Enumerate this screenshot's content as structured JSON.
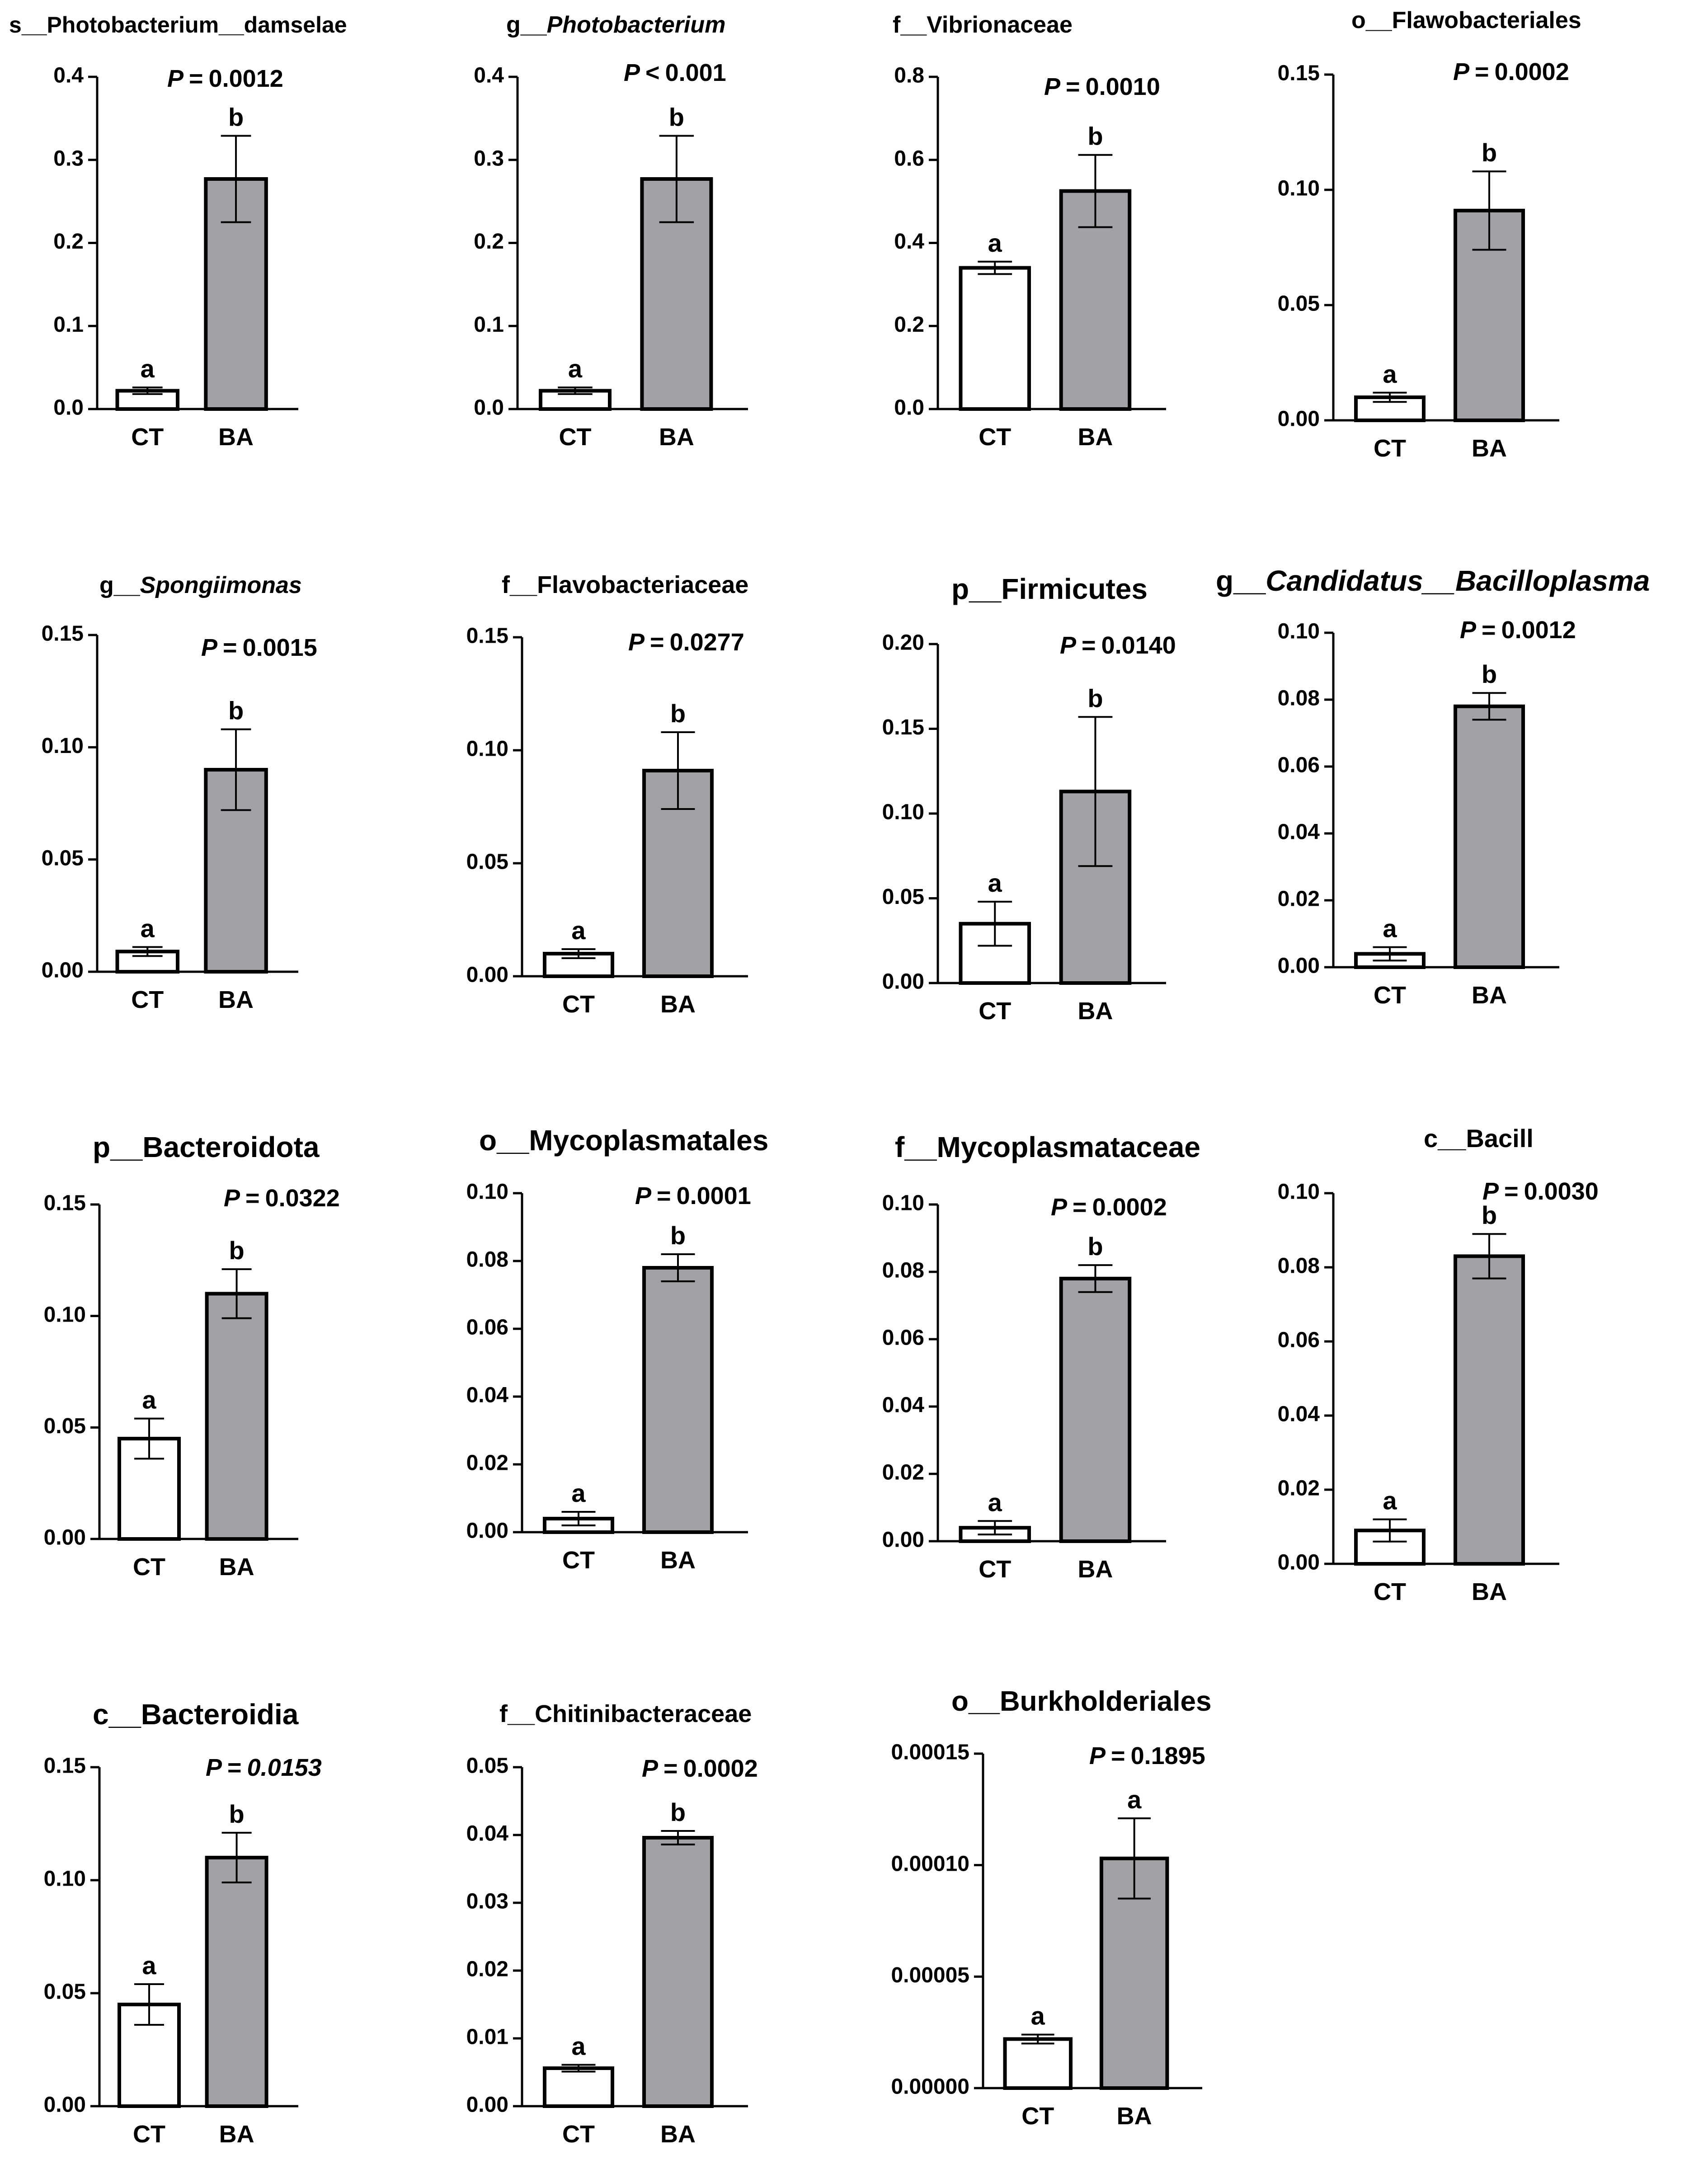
{
  "figure": {
    "panel_count": 15
  },
  "chart_data": [
    {
      "type": "bar",
      "title_prefix": "s",
      "title_sep": "__",
      "title": "Photobacterium__damselae",
      "title_italic": false,
      "p_prefix": "P",
      "p_op": "=",
      "p_value": "0.0012",
      "p_italic": false,
      "categories": [
        "CT",
        "BA"
      ],
      "values": [
        0.022,
        0.277
      ],
      "errors": [
        0.004,
        0.052
      ],
      "letters": [
        "a",
        "b"
      ],
      "ylim": [
        0,
        0.4
      ],
      "yticks": [
        "0.0",
        "0.1",
        "0.2",
        "0.3",
        "0.4"
      ]
    },
    {
      "type": "bar",
      "title_prefix": "g",
      "title_sep": "__",
      "title": "Photobacterium",
      "title_italic": true,
      "p_prefix": "P",
      "p_op": "<",
      "p_value": "0.001",
      "p_italic": false,
      "categories": [
        "CT",
        "BA"
      ],
      "values": [
        0.022,
        0.277
      ],
      "errors": [
        0.004,
        0.052
      ],
      "letters": [
        "a",
        "b"
      ],
      "ylim": [
        0,
        0.4
      ],
      "yticks": [
        "0.0",
        "0.1",
        "0.2",
        "0.3",
        "0.4"
      ]
    },
    {
      "type": "bar",
      "title_prefix": "f",
      "title_sep": "__",
      "title": "Vibrionaceae",
      "title_italic": false,
      "p_prefix": "P",
      "p_op": "=",
      "p_value": "0.0010",
      "p_italic": false,
      "categories": [
        "CT",
        "BA"
      ],
      "values": [
        0.34,
        0.525
      ],
      "errors": [
        0.015,
        0.087
      ],
      "letters": [
        "a",
        "b"
      ],
      "ylim": [
        0,
        0.8
      ],
      "yticks": [
        "0.0",
        "0.2",
        "0.4",
        "0.6",
        "0.8"
      ]
    },
    {
      "type": "bar",
      "title_prefix": "o",
      "title_sep": "__",
      "title": "Flawobacteriales",
      "title_italic": false,
      "p_prefix": "P",
      "p_op": "=",
      "p_value": "0.0002",
      "p_italic": false,
      "categories": [
        "CT",
        "BA"
      ],
      "values": [
        0.01,
        0.091
      ],
      "errors": [
        0.002,
        0.017
      ],
      "letters": [
        "a",
        "b"
      ],
      "ylim": [
        0,
        0.15
      ],
      "yticks": [
        "0.00",
        "0.05",
        "0.10",
        "0.15"
      ]
    },
    {
      "type": "bar",
      "title_prefix": "g",
      "title_sep": "__",
      "title": "Spongiimonas",
      "title_italic": true,
      "p_prefix": "P",
      "p_op": "=",
      "p_value": "0.0015",
      "p_italic": false,
      "categories": [
        "CT",
        "BA"
      ],
      "values": [
        0.009,
        0.09
      ],
      "errors": [
        0.002,
        0.018
      ],
      "letters": [
        "a",
        "b"
      ],
      "ylim": [
        0,
        0.15
      ],
      "yticks": [
        "0.00",
        "0.05",
        "0.10",
        "0.15"
      ]
    },
    {
      "type": "bar",
      "title_prefix": "f",
      "title_sep": "__",
      "title": "Flavobacteriaceae",
      "title_italic": false,
      "p_prefix": "P",
      "p_op": "=",
      "p_value": "0.0277",
      "p_italic": false,
      "categories": [
        "CT",
        "BA"
      ],
      "values": [
        0.01,
        0.091
      ],
      "errors": [
        0.002,
        0.017
      ],
      "letters": [
        "a",
        "b"
      ],
      "ylim": [
        0,
        0.15
      ],
      "yticks": [
        "0.00",
        "0.05",
        "0.10",
        "0.15"
      ]
    },
    {
      "type": "bar",
      "title_prefix": "p",
      "title_sep": "__",
      "title": "Firmicutes",
      "title_italic": false,
      "p_prefix": "P",
      "p_op": "=",
      "p_value": "0.0140",
      "p_italic": false,
      "categories": [
        "CT",
        "BA"
      ],
      "values": [
        0.035,
        0.113
      ],
      "errors": [
        0.013,
        0.044
      ],
      "letters": [
        "a",
        "b"
      ],
      "ylim": [
        0,
        0.2
      ],
      "yticks": [
        "0.00",
        "0.05",
        "0.10",
        "0.15",
        "0.20"
      ]
    },
    {
      "type": "bar",
      "title_prefix": "g",
      "title_sep": "__",
      "title": "Candidatus__Bacilloplasma",
      "title_italic": true,
      "p_prefix": "P",
      "p_op": "=",
      "p_value": "0.0012",
      "p_italic": false,
      "categories": [
        "CT",
        "BA"
      ],
      "values": [
        0.004,
        0.078
      ],
      "errors": [
        0.002,
        0.004
      ],
      "letters": [
        "a",
        "b"
      ],
      "ylim": [
        0,
        0.1
      ],
      "yticks": [
        "0.00",
        "0.02",
        "0.04",
        "0.06",
        "0.08",
        "0.10"
      ]
    },
    {
      "type": "bar",
      "title_prefix": "p",
      "title_sep": "__",
      "title": "Bacteroidota",
      "title_italic": false,
      "p_prefix": "P",
      "p_op": "=",
      "p_value": "0.0322",
      "p_italic": false,
      "categories": [
        "CT",
        "BA"
      ],
      "values": [
        0.045,
        0.11
      ],
      "errors": [
        0.009,
        0.011
      ],
      "letters": [
        "a",
        "b"
      ],
      "ylim": [
        0,
        0.15
      ],
      "yticks": [
        "0.00",
        "0.05",
        "0.10",
        "0.15"
      ]
    },
    {
      "type": "bar",
      "title_prefix": "o",
      "title_sep": "__",
      "title": "Mycoplasmatales",
      "title_italic": false,
      "p_prefix": "P",
      "p_op": "=",
      "p_value": "0.0001",
      "p_italic": false,
      "categories": [
        "CT",
        "BA"
      ],
      "values": [
        0.004,
        0.078
      ],
      "errors": [
        0.002,
        0.004
      ],
      "letters": [
        "a",
        "b"
      ],
      "ylim": [
        0,
        0.1
      ],
      "yticks": [
        "0.00",
        "0.02",
        "0.04",
        "0.06",
        "0.08",
        "0.10"
      ]
    },
    {
      "type": "bar",
      "title_prefix": "f",
      "title_sep": "__",
      "title": "Mycoplasmataceae",
      "title_italic": false,
      "p_prefix": "P",
      "p_op": "=",
      "p_value": "0.0002",
      "p_italic": false,
      "categories": [
        "CT",
        "BA"
      ],
      "values": [
        0.004,
        0.078
      ],
      "errors": [
        0.002,
        0.004
      ],
      "letters": [
        "a",
        "b"
      ],
      "ylim": [
        0,
        0.1
      ],
      "yticks": [
        "0.00",
        "0.02",
        "0.04",
        "0.06",
        "0.08",
        "0.10"
      ]
    },
    {
      "type": "bar",
      "title_prefix": "c",
      "title_sep": "__",
      "title": "Bacill",
      "title_italic": false,
      "p_prefix": "P",
      "p_op": "=",
      "p_value": "0.0030",
      "p_italic": false,
      "categories": [
        "CT",
        "BA"
      ],
      "values": [
        0.009,
        0.083
      ],
      "errors": [
        0.003,
        0.006
      ],
      "letters": [
        "a",
        "b"
      ],
      "ylim": [
        0,
        0.1
      ],
      "yticks": [
        "0.00",
        "0.02",
        "0.04",
        "0.06",
        "0.08",
        "0.10"
      ]
    },
    {
      "type": "bar",
      "title_prefix": "c",
      "title_sep": "__",
      "title": "Bacteroidia",
      "title_italic": false,
      "p_prefix": "P",
      "p_op": "=",
      "p_value": "0.0153",
      "p_italic": true,
      "categories": [
        "CT",
        "BA"
      ],
      "values": [
        0.045,
        0.11
      ],
      "errors": [
        0.009,
        0.011
      ],
      "letters": [
        "a",
        "b"
      ],
      "ylim": [
        0,
        0.15
      ],
      "yticks": [
        "0.00",
        "0.05",
        "0.10",
        "0.15"
      ]
    },
    {
      "type": "bar",
      "title_prefix": "f",
      "title_sep": "__",
      "title": "Chitinibacteraceae",
      "title_italic": false,
      "p_prefix": "P",
      "p_op": "=",
      "p_value": "0.0002",
      "p_italic": false,
      "categories": [
        "CT",
        "BA"
      ],
      "values": [
        0.0056,
        0.0396
      ],
      "errors": [
        0.0005,
        0.001
      ],
      "letters": [
        "a",
        "b"
      ],
      "ylim": [
        0,
        0.05
      ],
      "yticks": [
        "0.00",
        "0.01",
        "0.02",
        "0.03",
        "0.04",
        "0.05"
      ]
    },
    {
      "type": "bar",
      "title_prefix": "o",
      "title_sep": "__",
      "title": "Burkholderiales",
      "title_italic": false,
      "p_prefix": "P",
      "p_op": "=",
      "p_value": "0.1895",
      "p_italic": false,
      "categories": [
        "CT",
        "BA"
      ],
      "values": [
        2.2e-05,
        0.000103
      ],
      "errors": [
        2e-06,
        1.8e-05
      ],
      "letters": [
        "a",
        "a"
      ],
      "ylim": [
        0,
        0.00015
      ],
      "yticks": [
        "0.00000",
        "0.00005",
        "0.00010",
        "0.00015"
      ]
    }
  ],
  "style": {
    "bar_colors": [
      "#ffffff",
      "#a3a1a6"
    ],
    "stroke": "#000000"
  }
}
